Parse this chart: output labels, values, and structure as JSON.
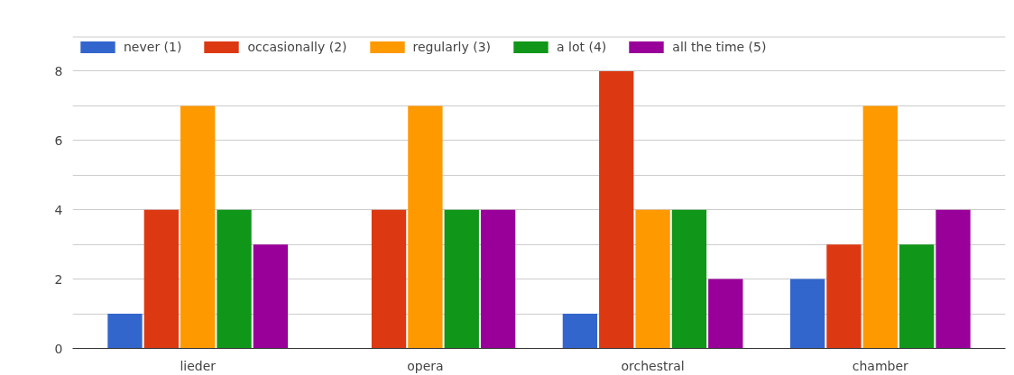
{
  "chart_data": {
    "type": "bar",
    "categories": [
      "lieder",
      "opera",
      "orchestral",
      "chamber"
    ],
    "series": [
      {
        "name": "never (1)",
        "color": "#3366cc",
        "values": [
          1,
          0,
          1,
          2
        ]
      },
      {
        "name": "occasionally (2)",
        "color": "#dc3912",
        "values": [
          4,
          4,
          8,
          3
        ]
      },
      {
        "name": "regularly (3)",
        "color": "#ff9900",
        "values": [
          7,
          7,
          4,
          7
        ]
      },
      {
        "name": "a lot (4)",
        "color": "#109618",
        "values": [
          4,
          4,
          4,
          3
        ]
      },
      {
        "name": "all the time (5)",
        "color": "#990099",
        "values": [
          3,
          4,
          2,
          4
        ]
      }
    ],
    "ylim": [
      0,
      9
    ],
    "yticks": [
      0,
      {
        "value": 1,
        "label": null
      },
      2,
      {
        "value": 3,
        "label": null
      },
      4,
      {
        "value": 5,
        "label": null
      },
      6,
      {
        "value": 7,
        "label": null
      },
      8,
      {
        "value": 9,
        "label": null
      }
    ],
    "grid": "y",
    "legend": "top left"
  }
}
